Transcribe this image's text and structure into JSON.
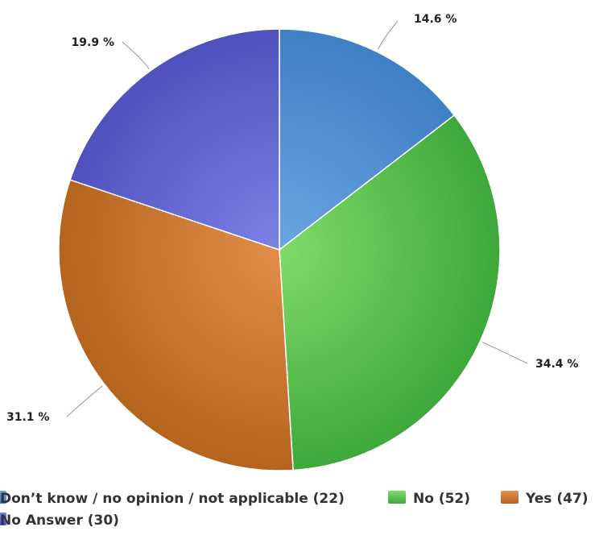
{
  "chart_data": {
    "type": "pie",
    "title": "",
    "slices": [
      {
        "label": "Don’t know / no opinion / not applicable",
        "count": 22,
        "percent": 14.6,
        "percent_label": "14.6 %",
        "legend_label": "Don’t know / no opinion / not applicable (22)",
        "color": "#6ba6e2",
        "color_dark": "#3f7fc4"
      },
      {
        "label": "No",
        "count": 52,
        "percent": 34.4,
        "percent_label": "34.4 %",
        "legend_label": "No (52)",
        "color": "#7fdc6a",
        "color_dark": "#3ea83a"
      },
      {
        "label": "Yes",
        "count": 47,
        "percent": 31.1,
        "percent_label": "31.1 %",
        "legend_label": "Yes (47)",
        "color": "#e28e4a",
        "color_dark": "#b5641e"
      },
      {
        "label": "No Answer",
        "count": 30,
        "percent": 19.9,
        "percent_label": "19.9 %",
        "legend_label": "No Answer (30)",
        "color": "#7b82e6",
        "color_dark": "#4f52be"
      }
    ],
    "start_angle_deg": 0,
    "direction": "clockwise",
    "legend_position": "bottom"
  }
}
